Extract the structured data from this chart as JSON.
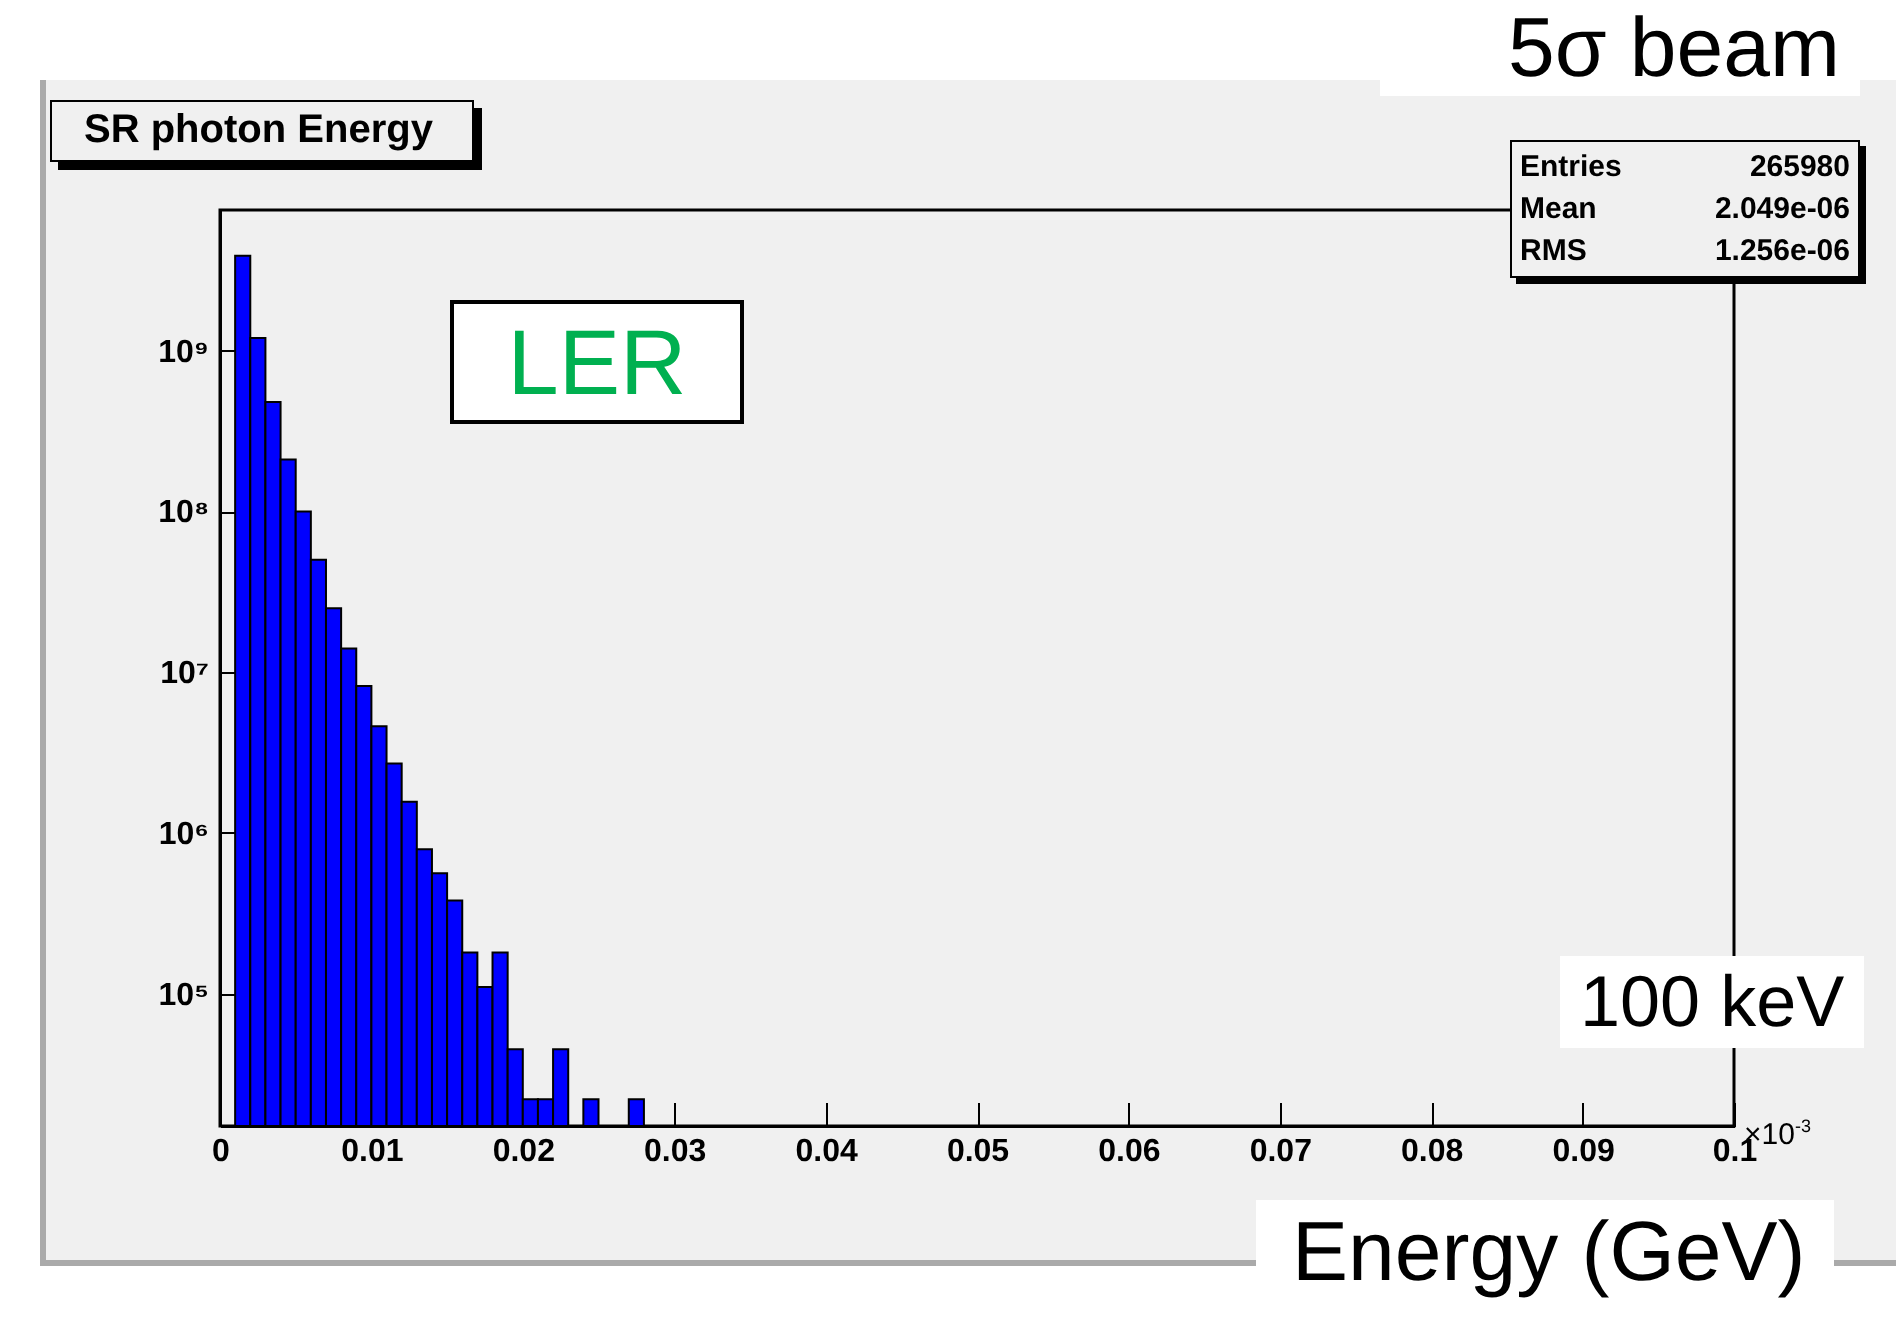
{
  "chart_data": {
    "type": "histogram",
    "title": "SR photon Energy",
    "xlabel": "Energy (GeV)",
    "bins": [
      0,
      0.001,
      0.002,
      0.003,
      0.004,
      0.005,
      0.006,
      0.007,
      0.008,
      0.009,
      0.01,
      0.011,
      0.012,
      0.013,
      0.014,
      0.015,
      0.016,
      0.017,
      0.018,
      0.019,
      0.02,
      0.021,
      0.022,
      0.023,
      0.024,
      0.025,
      0.026,
      0.027,
      0.028
    ],
    "values": [
      null,
      3900000000.0,
      1200000000.0,
      480000000.0,
      210000000.0,
      100000000.0,
      50000000.0,
      25000000.0,
      14000000.0,
      8200000.0,
      4600000.0,
      2700000.0,
      1560000.0,
      790000.0,
      560000.0,
      380000.0,
      180000.0,
      110000.0,
      180000.0,
      45000.0,
      22000.0,
      22000.0,
      45000.0,
      null,
      22000.0,
      null,
      null,
      22000.0
    ],
    "color": "#0000ff",
    "log": true,
    "grid": false,
    "xlim": [
      0,
      0.1
    ],
    "xticks": [
      0,
      0.01,
      0.02,
      0.03,
      0.04,
      0.05,
      0.06,
      0.07,
      0.08,
      0.09,
      0.1
    ],
    "ylim": [
      15000,
      7500000000.0
    ],
    "yticks": [
      {
        "value": 100000,
        "label": "10⁵"
      },
      {
        "value": 1000000,
        "label": "10⁶"
      },
      {
        "value": 10000000,
        "label": "10⁷"
      },
      {
        "value": 100000000,
        "label": "10⁸"
      },
      {
        "value": 1000000000,
        "label": "10⁹"
      }
    ],
    "annotations": [
      "×10$^{-3}$",
      "LER",
      "Entries 265980",
      "Mean 2.049e-06",
      "RMS 1.256e-06",
      "5σ beam",
      "100 keV"
    ]
  }
}
